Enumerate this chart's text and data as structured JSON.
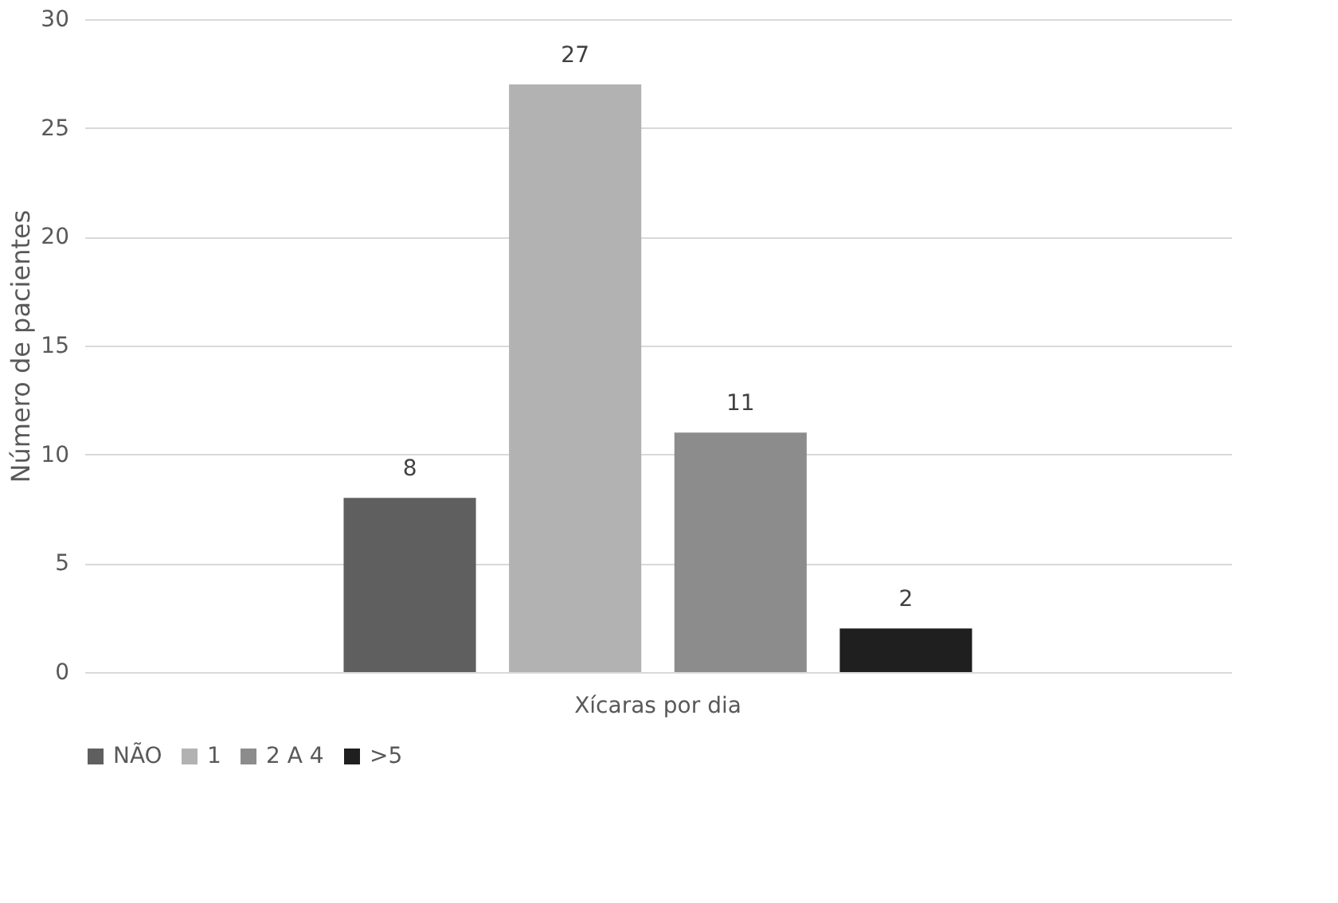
{
  "chart_data": {
    "type": "bar",
    "ylabel": "Número de pacientes",
    "categories": [
      "Xícaras por dia"
    ],
    "series": [
      {
        "name": "NÃO",
        "color": "#5f5f5f",
        "values": [
          8
        ]
      },
      {
        "name": "1",
        "color": "#b2b2b2",
        "values": [
          27
        ]
      },
      {
        "name": "2 A 4",
        "color": "#8c8c8c",
        "values": [
          11
        ]
      },
      {
        "name": ">5",
        "color": "#1f1f1f",
        "values": [
          2
        ]
      }
    ],
    "ylim": [
      0,
      30
    ],
    "yticks": [
      0,
      5,
      10,
      15,
      20,
      25,
      30
    ],
    "grid": "y",
    "legend": "bottom",
    "data_labels": true
  }
}
